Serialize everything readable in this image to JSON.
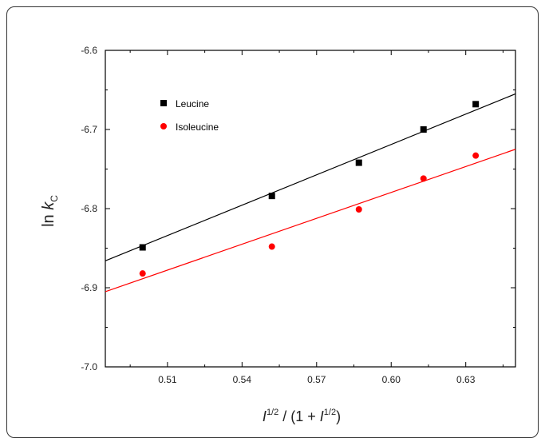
{
  "chart_data": {
    "type": "scatter",
    "xlabel": {
      "var": "I",
      "sup": "1/2",
      "mid": " / (1 + ",
      "var2": "I",
      "sup2": "1/2",
      "end": ")"
    },
    "ylabel": {
      "prefix": "ln ",
      "var": "k",
      "sub": "C"
    },
    "xlim": [
      0.485,
      0.65
    ],
    "ylim": [
      -7.0,
      -6.6
    ],
    "x_ticks": [
      0.51,
      0.54,
      0.57,
      0.6,
      0.63
    ],
    "x_tick_labels": [
      "0.51",
      "0.54",
      "0.57",
      "0.60",
      "0.63"
    ],
    "y_ticks": [
      -6.6,
      -6.7,
      -6.8,
      -6.9,
      -7.0
    ],
    "y_tick_labels": [
      "-6.6",
      "-6.7",
      "-6.8",
      "-6.9",
      "-7.0"
    ],
    "legend_position": "top-left",
    "series": [
      {
        "name": "Leucine",
        "color": "#000000",
        "marker": "square",
        "x": [
          0.5,
          0.552,
          0.587,
          0.613,
          0.634
        ],
        "y": [
          -6.849,
          -6.784,
          -6.742,
          -6.7,
          -6.668
        ],
        "fit": {
          "x": [
            0.485,
            0.65
          ],
          "y": [
            -6.866,
            -6.655
          ]
        }
      },
      {
        "name": "Isoleucine",
        "color": "#ff0000",
        "marker": "circle",
        "x": [
          0.5,
          0.552,
          0.587,
          0.613,
          0.634
        ],
        "y": [
          -6.882,
          -6.848,
          -6.801,
          -6.762,
          -6.733
        ],
        "fit": {
          "x": [
            0.485,
            0.65
          ],
          "y": [
            -6.905,
            -6.725
          ]
        }
      }
    ]
  }
}
